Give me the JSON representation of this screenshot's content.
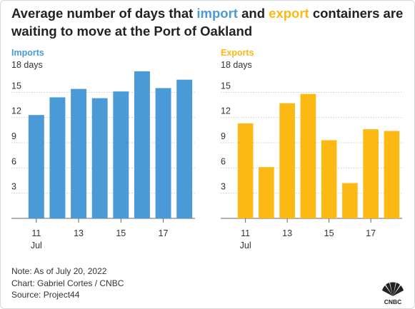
{
  "title": {
    "part1": "Average number of days that ",
    "import_word": "import",
    "part2": " and ",
    "export_word": "export",
    "part3": " containers are waiting to move at the Port of Oakland"
  },
  "colors": {
    "imports": "#4a9ad8",
    "exports": "#fdb913",
    "grid": "#c8c8c8",
    "text": "#333333"
  },
  "chart_data": [
    {
      "type": "bar",
      "title": "Imports",
      "unit_label": "18 days",
      "categories": [
        "11",
        "12",
        "13",
        "14",
        "15",
        "16",
        "17",
        "18"
      ],
      "values": [
        12.3,
        14.4,
        15.4,
        14.3,
        15.1,
        17.5,
        15.5,
        16.5
      ],
      "ylim": [
        0,
        18
      ],
      "yticks": [
        "3",
        "6",
        "9",
        "12",
        "15"
      ],
      "xtick_labels": [
        "11",
        "13",
        "15",
        "17"
      ],
      "xtick_sublabel": "Jul",
      "grid": true
    },
    {
      "type": "bar",
      "title": "Exports",
      "unit_label": "18 days",
      "categories": [
        "11",
        "12",
        "13",
        "14",
        "15",
        "16",
        "17",
        "18"
      ],
      "values": [
        11.3,
        6.1,
        13.7,
        14.8,
        9.3,
        4.2,
        10.6,
        10.4
      ],
      "ylim": [
        0,
        18
      ],
      "yticks": [
        "3",
        "6",
        "9",
        "12",
        "15"
      ],
      "xtick_labels": [
        "11",
        "13",
        "15",
        "17"
      ],
      "xtick_sublabel": "Jul",
      "grid": true
    }
  ],
  "notes": {
    "note": "Note: As of July 20, 2022",
    "credit": "Chart: Gabriel Cortes / CNBC",
    "source": "Source: Project44"
  },
  "logo": {
    "text": "CNBC",
    "icon": "peacock-icon"
  }
}
